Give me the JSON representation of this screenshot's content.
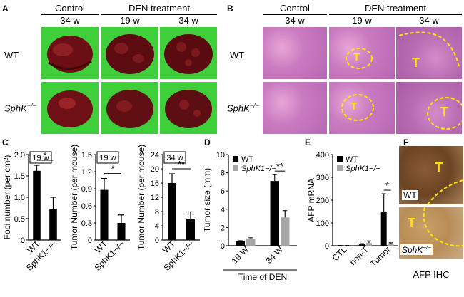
{
  "panels": {
    "A": {
      "label": "A",
      "header_control": "Control",
      "header_den": "DEN treatment",
      "time_control": "34 w",
      "time_den_1": "19 w",
      "time_den_2": "34 w",
      "row_wt": "WT",
      "row_sphk": "SphK",
      "row_sphk_sup": "−/−"
    },
    "B": {
      "label": "B",
      "header_control": "Control",
      "header_den": "DEN treatment",
      "time_control": "34 w",
      "time_den_1": "19 w",
      "time_den_2": "34 w",
      "row_wt": "WT",
      "row_sphk": "SphK",
      "row_sphk_sup": "−/−",
      "tumor_marker": "T"
    },
    "C": {
      "label": "C"
    },
    "D": {
      "label": "D"
    },
    "E": {
      "label": "E"
    },
    "F": {
      "label": "F",
      "tumor_marker": "T",
      "genotype_wt": "WT",
      "genotype_sphk": "SphK",
      "genotype_sphk_sup": "−/−",
      "caption": "AFP IHC"
    }
  },
  "chart_data": [
    {
      "id": "C1",
      "type": "bar",
      "categories": [
        "WT",
        "SphK1−/−"
      ],
      "values": [
        1.62,
        0.73
      ],
      "errors": [
        0.13,
        0.27
      ],
      "ylabel": "Foci number (per cm²)",
      "ylim": [
        0,
        2
      ],
      "yticks": [
        "0",
        "0.5",
        "1.0",
        "1.5",
        "2.0"
      ],
      "inset": "19 w",
      "significance": "*",
      "bar_color": "#000000"
    },
    {
      "id": "C2",
      "type": "bar",
      "categories": [
        "WT",
        "SphK1−/−"
      ],
      "values": [
        0.88,
        0.3
      ],
      "errors": [
        0.2,
        0.14
      ],
      "ylabel": "Tumor Number (per mouse)",
      "ylim": [
        0,
        1.5
      ],
      "yticks": [
        "0",
        "0.3",
        "0.6",
        "0.9",
        "1.2",
        "1.5"
      ],
      "inset": "19 w",
      "significance": "*",
      "bar_color": "#000000"
    },
    {
      "id": "C3",
      "type": "bar",
      "categories": [
        "WT",
        "SphK1−/−"
      ],
      "values": [
        16,
        6
      ],
      "errors": [
        2.6,
        1.9
      ],
      "ylabel": "Tumor Number (per mouse)",
      "ylim": [
        0,
        24
      ],
      "yticks": [
        "0",
        "4",
        "8",
        "12",
        "16",
        "20",
        "24"
      ],
      "inset": "34 w",
      "significance": "**",
      "bar_color": "#000000"
    },
    {
      "id": "D",
      "type": "bar",
      "categories": [
        "19 W",
        "34 W"
      ],
      "series": [
        {
          "name": "WT",
          "values": [
            0.5,
            7.1
          ],
          "errors": [
            0.05,
            0.7
          ],
          "color": "#000000"
        },
        {
          "name": "SphK1−/−",
          "values": [
            0.75,
            3.1
          ],
          "errors": [
            0.12,
            0.75
          ],
          "color": "#a6a6a6"
        }
      ],
      "ylabel": "Tumor size (mm)",
      "xlabel": "Time of DEN",
      "ylim": [
        0,
        10
      ],
      "yticks": [
        "0",
        "2",
        "4",
        "6",
        "8",
        "10"
      ],
      "significance": "**",
      "legend": "top-left"
    },
    {
      "id": "E",
      "type": "bar",
      "categories": [
        "CTL",
        "non-T",
        "Tumor"
      ],
      "series": [
        {
          "name": "WT",
          "values": [
            1,
            6,
            150
          ],
          "errors": [
            0.5,
            3,
            78
          ],
          "color": "#000000"
        },
        {
          "name": "SphK1−/−",
          "values": [
            1,
            12,
            10
          ],
          "errors": [
            0.5,
            9,
            3
          ],
          "color": "#a6a6a6"
        }
      ],
      "ylabel": "AFP mRNA",
      "ylim": [
        0,
        400
      ],
      "yticks": [
        "0",
        "100",
        "200",
        "300",
        "400"
      ],
      "significance": "*",
      "legend": "top-left"
    }
  ]
}
